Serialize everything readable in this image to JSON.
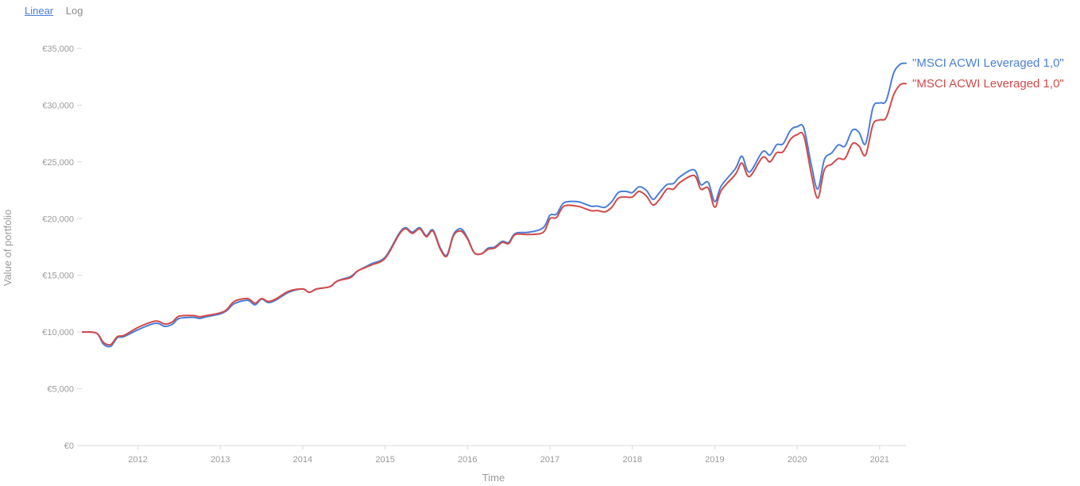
{
  "scale_toggle": {
    "linear": "Linear",
    "log": "Log",
    "active": "linear"
  },
  "chart_data": {
    "type": "line",
    "title": "",
    "xlabel": "Time",
    "ylabel": "Value of portfolio",
    "xlim": [
      2011.32,
      2021.32
    ],
    "ylim": [
      0,
      35000
    ],
    "y_ticks": [
      0,
      5000,
      10000,
      15000,
      20000,
      25000,
      30000,
      35000
    ],
    "y_tick_labels": [
      "€0",
      "€5,000",
      "€10,000",
      "€15,000",
      "€20,000",
      "€25,000",
      "€30,000",
      "€35,000"
    ],
    "x_ticks": [
      2012,
      2013,
      2014,
      2015,
      2016,
      2017,
      2018,
      2019,
      2020,
      2021
    ],
    "x_tick_labels": [
      "2012",
      "2013",
      "2014",
      "2015",
      "2016",
      "2017",
      "2018",
      "2019",
      "2020",
      "2021"
    ],
    "grid": false,
    "legend": "right end labels",
    "series": [
      {
        "name": "\"MSCI ACWI Leveraged 1,0\"",
        "color": "#4a7fd8",
        "points": [
          [
            2011.33,
            10000
          ],
          [
            2011.5,
            9900
          ],
          [
            2011.58,
            8950
          ],
          [
            2011.67,
            8750
          ],
          [
            2011.75,
            9500
          ],
          [
            2011.83,
            9600
          ],
          [
            2012.0,
            10200
          ],
          [
            2012.17,
            10700
          ],
          [
            2012.25,
            10750
          ],
          [
            2012.33,
            10500
          ],
          [
            2012.42,
            10700
          ],
          [
            2012.5,
            11200
          ],
          [
            2012.67,
            11300
          ],
          [
            2012.75,
            11200
          ],
          [
            2012.83,
            11350
          ],
          [
            2013.0,
            11600
          ],
          [
            2013.08,
            11900
          ],
          [
            2013.17,
            12500
          ],
          [
            2013.33,
            12800
          ],
          [
            2013.42,
            12400
          ],
          [
            2013.5,
            12900
          ],
          [
            2013.58,
            12600
          ],
          [
            2013.67,
            12800
          ],
          [
            2013.83,
            13500
          ],
          [
            2014.0,
            13800
          ],
          [
            2014.08,
            13500
          ],
          [
            2014.17,
            13800
          ],
          [
            2014.33,
            14000
          ],
          [
            2014.42,
            14500
          ],
          [
            2014.58,
            14900
          ],
          [
            2014.67,
            15400
          ],
          [
            2014.83,
            16000
          ],
          [
            2015.0,
            16600
          ],
          [
            2015.17,
            18700
          ],
          [
            2015.25,
            19200
          ],
          [
            2015.33,
            18800
          ],
          [
            2015.42,
            19200
          ],
          [
            2015.5,
            18500
          ],
          [
            2015.58,
            19000
          ],
          [
            2015.67,
            17400
          ],
          [
            2015.75,
            16800
          ],
          [
            2015.83,
            18600
          ],
          [
            2015.92,
            19100
          ],
          [
            2016.0,
            18300
          ],
          [
            2016.08,
            17000
          ],
          [
            2016.17,
            16900
          ],
          [
            2016.25,
            17400
          ],
          [
            2016.33,
            17500
          ],
          [
            2016.42,
            18000
          ],
          [
            2016.5,
            17900
          ],
          [
            2016.58,
            18700
          ],
          [
            2016.75,
            18800
          ],
          [
            2016.92,
            19200
          ],
          [
            2017.0,
            20300
          ],
          [
            2017.08,
            20400
          ],
          [
            2017.17,
            21400
          ],
          [
            2017.33,
            21500
          ],
          [
            2017.42,
            21300
          ],
          [
            2017.5,
            21100
          ],
          [
            2017.58,
            21100
          ],
          [
            2017.67,
            21000
          ],
          [
            2017.75,
            21500
          ],
          [
            2017.83,
            22300
          ],
          [
            2017.92,
            22400
          ],
          [
            2018.0,
            22300
          ],
          [
            2018.08,
            22800
          ],
          [
            2018.17,
            22500
          ],
          [
            2018.25,
            21700
          ],
          [
            2018.33,
            22300
          ],
          [
            2018.42,
            23000
          ],
          [
            2018.5,
            23100
          ],
          [
            2018.58,
            23700
          ],
          [
            2018.75,
            24300
          ],
          [
            2018.83,
            23000
          ],
          [
            2018.92,
            23200
          ],
          [
            2019.0,
            21500
          ],
          [
            2019.08,
            22900
          ],
          [
            2019.25,
            24400
          ],
          [
            2019.33,
            25500
          ],
          [
            2019.42,
            24100
          ],
          [
            2019.58,
            25900
          ],
          [
            2019.67,
            25600
          ],
          [
            2019.75,
            26500
          ],
          [
            2019.83,
            26600
          ],
          [
            2019.92,
            27800
          ],
          [
            2020.0,
            28100
          ],
          [
            2020.08,
            28000
          ],
          [
            2020.17,
            24800
          ],
          [
            2020.25,
            22600
          ],
          [
            2020.33,
            25200
          ],
          [
            2020.42,
            25800
          ],
          [
            2020.5,
            26500
          ],
          [
            2020.58,
            26400
          ],
          [
            2020.67,
            27800
          ],
          [
            2020.75,
            27600
          ],
          [
            2020.83,
            26600
          ],
          [
            2020.92,
            29800
          ],
          [
            2021.0,
            30200
          ],
          [
            2021.08,
            30400
          ],
          [
            2021.17,
            32800
          ],
          [
            2021.25,
            33600
          ],
          [
            2021.32,
            33700
          ]
        ]
      },
      {
        "name": "\"MSCI ACWI Leveraged 1,0\"",
        "color": "#d24a4a",
        "points": [
          [
            2011.33,
            10000
          ],
          [
            2011.5,
            9900
          ],
          [
            2011.58,
            9100
          ],
          [
            2011.67,
            8900
          ],
          [
            2011.75,
            9600
          ],
          [
            2011.83,
            9700
          ],
          [
            2012.0,
            10400
          ],
          [
            2012.17,
            10900
          ],
          [
            2012.25,
            10950
          ],
          [
            2012.33,
            10700
          ],
          [
            2012.42,
            10900
          ],
          [
            2012.5,
            11400
          ],
          [
            2012.67,
            11450
          ],
          [
            2012.75,
            11350
          ],
          [
            2012.83,
            11450
          ],
          [
            2013.0,
            11700
          ],
          [
            2013.08,
            12000
          ],
          [
            2013.17,
            12700
          ],
          [
            2013.33,
            12950
          ],
          [
            2013.42,
            12550
          ],
          [
            2013.5,
            12950
          ],
          [
            2013.58,
            12700
          ],
          [
            2013.67,
            12900
          ],
          [
            2013.83,
            13600
          ],
          [
            2014.0,
            13800
          ],
          [
            2014.08,
            13500
          ],
          [
            2014.17,
            13800
          ],
          [
            2014.33,
            14000
          ],
          [
            2014.42,
            14500
          ],
          [
            2014.58,
            14800
          ],
          [
            2014.67,
            15400
          ],
          [
            2014.83,
            15900
          ],
          [
            2015.0,
            16500
          ],
          [
            2015.17,
            18600
          ],
          [
            2015.25,
            19100
          ],
          [
            2015.33,
            18700
          ],
          [
            2015.42,
            19100
          ],
          [
            2015.5,
            18400
          ],
          [
            2015.58,
            18900
          ],
          [
            2015.67,
            17300
          ],
          [
            2015.75,
            16700
          ],
          [
            2015.83,
            18500
          ],
          [
            2015.92,
            18900
          ],
          [
            2016.0,
            18200
          ],
          [
            2016.08,
            17000
          ],
          [
            2016.17,
            16900
          ],
          [
            2016.25,
            17300
          ],
          [
            2016.33,
            17400
          ],
          [
            2016.42,
            17900
          ],
          [
            2016.5,
            17800
          ],
          [
            2016.58,
            18600
          ],
          [
            2016.75,
            18600
          ],
          [
            2016.92,
            18800
          ],
          [
            2017.0,
            20000
          ],
          [
            2017.08,
            20100
          ],
          [
            2017.17,
            21100
          ],
          [
            2017.33,
            21100
          ],
          [
            2017.42,
            20900
          ],
          [
            2017.5,
            20700
          ],
          [
            2017.58,
            20700
          ],
          [
            2017.67,
            20600
          ],
          [
            2017.75,
            21000
          ],
          [
            2017.83,
            21800
          ],
          [
            2017.92,
            21900
          ],
          [
            2018.0,
            21900
          ],
          [
            2018.08,
            22400
          ],
          [
            2018.17,
            22000
          ],
          [
            2018.25,
            21200
          ],
          [
            2018.33,
            21700
          ],
          [
            2018.42,
            22600
          ],
          [
            2018.5,
            22600
          ],
          [
            2018.58,
            23200
          ],
          [
            2018.75,
            23800
          ],
          [
            2018.83,
            22600
          ],
          [
            2018.92,
            22700
          ],
          [
            2019.0,
            21000
          ],
          [
            2019.08,
            22500
          ],
          [
            2019.25,
            23900
          ],
          [
            2019.33,
            24900
          ],
          [
            2019.42,
            23700
          ],
          [
            2019.58,
            25400
          ],
          [
            2019.67,
            25000
          ],
          [
            2019.75,
            25800
          ],
          [
            2019.83,
            25900
          ],
          [
            2019.92,
            27000
          ],
          [
            2020.0,
            27400
          ],
          [
            2020.08,
            27300
          ],
          [
            2020.17,
            24000
          ],
          [
            2020.25,
            21800
          ],
          [
            2020.33,
            24300
          ],
          [
            2020.42,
            24800
          ],
          [
            2020.5,
            25300
          ],
          [
            2020.58,
            25300
          ],
          [
            2020.67,
            26600
          ],
          [
            2020.75,
            26400
          ],
          [
            2020.83,
            25600
          ],
          [
            2020.92,
            28300
          ],
          [
            2021.0,
            28700
          ],
          [
            2021.08,
            28900
          ],
          [
            2021.17,
            30900
          ],
          [
            2021.25,
            31800
          ],
          [
            2021.32,
            31900
          ]
        ]
      }
    ]
  }
}
